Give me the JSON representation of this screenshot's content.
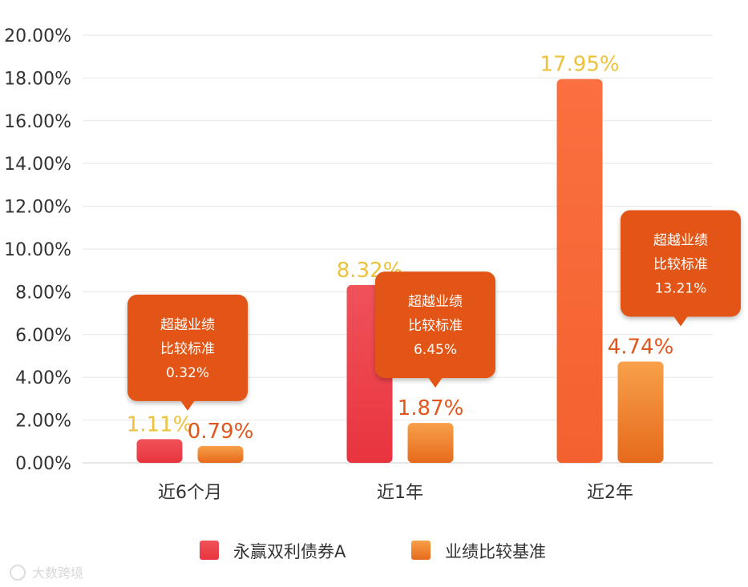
{
  "chart_data": {
    "type": "bar",
    "categories": [
      "近6个月",
      "近1年",
      "近2年"
    ],
    "y_tick_labels": [
      "0.00%",
      "2.00%",
      "4.00%",
      "6.00%",
      "8.00%",
      "10.00%",
      "12.00%",
      "14.00%",
      "16.00%",
      "18.00%",
      "20.00%"
    ],
    "ylim": [
      0,
      20
    ],
    "grid": true,
    "series": [
      {
        "name": "永赢双利债券A",
        "values": [
          1.11,
          8.32,
          17.95
        ],
        "labels": [
          "1.11%",
          "8.32%",
          "17.95%"
        ]
      },
      {
        "name": "业绩比较基准",
        "values": [
          0.79,
          1.87,
          4.74
        ],
        "labels": [
          "0.79%",
          "1.87%",
          "4.74%"
        ]
      }
    ],
    "callouts": [
      {
        "line1": "超越业绩",
        "line2": "比较标准",
        "value": "0.32%"
      },
      {
        "line1": "超越业绩",
        "line2": "比较标准",
        "value": "6.45%"
      },
      {
        "line1": "超越业绩",
        "line2": "比较标准",
        "value": "13.21%"
      }
    ],
    "legend_position": "bottom-center",
    "colors": {
      "fund_bar_top": "#f0525a",
      "fund_bar_bottom": "#e8343f",
      "fund_bar_highlight": "#fa6c3c",
      "benchmark_bar_top": "#f8a04a",
      "benchmark_bar_bottom": "#e66a1c",
      "fund_label_gold": "#ecc23c",
      "benchmark_label": "#e0561c",
      "callout_fill": "#e35514",
      "grid": "#e6e6e6"
    }
  },
  "watermark": "大数跨境"
}
